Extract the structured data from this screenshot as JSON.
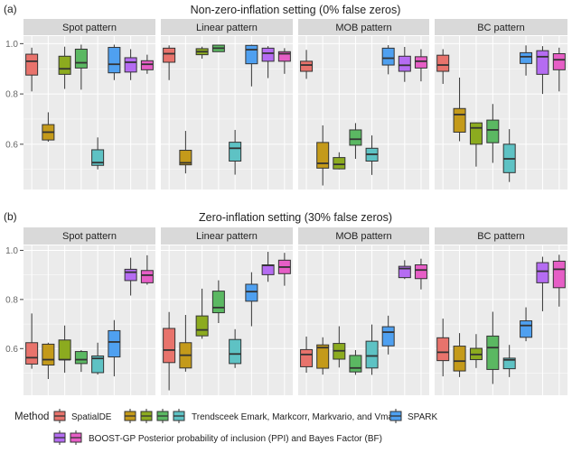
{
  "colors": {
    "SpatialDE": "#E8736C",
    "Emark": "#C49A1A",
    "Markcorr": "#8CAB1F",
    "Markvario": "#5BB862",
    "Vmark": "#5EC2C4",
    "SPARK": "#4FA0F0",
    "PPI": "#B56CF2",
    "BF": "#E65EC6",
    "panel_bg": "#EBEBEB",
    "strip_bg": "#D9D9D9"
  },
  "methods": [
    "SpatialDE",
    "Emark",
    "Markcorr",
    "Markvario",
    "Vmark",
    "SPARK",
    "PPI",
    "BF"
  ],
  "legend": {
    "title": "Method",
    "spatialde": "SpatialDE",
    "trendsceek": "Trendsceek Emark, Markcorr, Markvario, and Vmark",
    "spark": "SPARK",
    "boostgp": "BOOST-GP Posterior probability of inclusion (PPI) and Bayes Factor (BF)"
  },
  "chart_data": [
    {
      "type": "boxplot",
      "label": "(a)",
      "title": "Non-zero-inflation setting (0% false zeros)",
      "ylim": [
        0.42,
        1.03
      ],
      "yticks": [
        0.6,
        0.8,
        1.0
      ],
      "ytick_labels": [
        "0.6",
        "0.8",
        "1.0"
      ],
      "grid": true,
      "box_stats_order": [
        "min",
        "q1",
        "median",
        "q3",
        "max"
      ],
      "panels": [
        {
          "title": "Spot pattern",
          "boxes": [
            [
              0.81,
              0.875,
              0.93,
              0.958,
              0.984
            ],
            [
              0.61,
              0.617,
              0.648,
              0.678,
              0.727
            ],
            [
              0.82,
              0.878,
              0.9,
              0.95,
              0.988
            ],
            [
              0.817,
              0.903,
              0.924,
              0.978,
              0.996
            ],
            [
              0.5,
              0.516,
              0.527,
              0.578,
              0.627
            ],
            [
              0.855,
              0.884,
              0.918,
              0.985,
              0.996
            ],
            [
              0.855,
              0.887,
              0.926,
              0.944,
              0.978
            ],
            [
              0.88,
              0.896,
              0.918,
              0.932,
              0.956
            ]
          ]
        },
        {
          "title": "Linear pattern",
          "boxes": [
            [
              0.855,
              0.926,
              0.96,
              0.982,
              0.993
            ],
            [
              0.484,
              0.518,
              0.526,
              0.576,
              0.653
            ],
            [
              0.94,
              0.956,
              0.968,
              0.98,
              0.988
            ],
            [
              0.968,
              0.968,
              0.982,
              0.994,
              0.996
            ],
            [
              0.479,
              0.533,
              0.584,
              0.608,
              0.657
            ],
            [
              0.83,
              0.92,
              0.976,
              0.993,
              0.996
            ],
            [
              0.863,
              0.93,
              0.962,
              0.982,
              0.99
            ],
            [
              0.88,
              0.93,
              0.96,
              0.968,
              0.982
            ]
          ]
        },
        {
          "title": "MOB pattern",
          "boxes": [
            [
              0.86,
              0.89,
              0.915,
              0.93,
              0.975
            ],
            [
              0.436,
              0.505,
              0.524,
              0.607,
              0.675
            ],
            [
              0.5,
              0.502,
              0.52,
              0.547,
              0.568
            ],
            [
              0.542,
              0.596,
              0.62,
              0.657,
              0.684
            ],
            [
              0.478,
              0.533,
              0.56,
              0.584,
              0.635
            ],
            [
              0.878,
              0.915,
              0.942,
              0.982,
              0.994
            ],
            [
              0.848,
              0.89,
              0.914,
              0.95,
              0.987
            ],
            [
              0.85,
              0.903,
              0.93,
              0.948,
              0.978
            ]
          ]
        },
        {
          "title": "BC pattern",
          "boxes": [
            [
              0.84,
              0.89,
              0.915,
              0.954,
              0.978
            ],
            [
              0.612,
              0.648,
              0.718,
              0.742,
              0.865
            ],
            [
              0.511,
              0.6,
              0.665,
              0.685,
              0.687
            ],
            [
              0.526,
              0.606,
              0.657,
              0.696,
              0.76
            ],
            [
              0.45,
              0.487,
              0.542,
              0.6,
              0.66
            ],
            [
              0.873,
              0.921,
              0.948,
              0.964,
              0.993
            ],
            [
              0.8,
              0.878,
              0.948,
              0.972,
              0.99
            ],
            [
              0.81,
              0.896,
              0.936,
              0.96,
              0.984
            ]
          ]
        }
      ]
    },
    {
      "type": "boxplot",
      "label": "(b)",
      "title": "Zero-inflation setting (30% false zeros)",
      "ylim": [
        0.41,
        1.02
      ],
      "yticks": [
        0.6,
        0.8,
        1.0
      ],
      "ytick_labels": [
        "0.6",
        "0.8",
        "1.0"
      ],
      "grid": true,
      "box_stats_order": [
        "min",
        "q1",
        "median",
        "q3",
        "max"
      ],
      "panels": [
        {
          "title": "Spot pattern",
          "boxes": [
            [
              0.518,
              0.537,
              0.563,
              0.624,
              0.743
            ],
            [
              0.476,
              0.533,
              0.555,
              0.618,
              0.624
            ],
            [
              0.502,
              0.555,
              0.555,
              0.635,
              0.694
            ],
            [
              0.505,
              0.539,
              0.555,
              0.588,
              0.594
            ],
            [
              0.494,
              0.502,
              0.56,
              0.57,
              0.624
            ],
            [
              0.487,
              0.566,
              0.627,
              0.673,
              0.716
            ],
            [
              0.816,
              0.877,
              0.911,
              0.923,
              0.97
            ],
            [
              0.86,
              0.868,
              0.899,
              0.918,
              0.98
            ]
          ]
        },
        {
          "title": "Linear pattern",
          "boxes": [
            [
              0.43,
              0.543,
              0.594,
              0.682,
              0.749
            ],
            [
              0.506,
              0.521,
              0.573,
              0.624,
              0.737
            ],
            [
              0.64,
              0.652,
              0.676,
              0.733,
              0.844
            ],
            [
              0.704,
              0.746,
              0.767,
              0.834,
              0.878
            ],
            [
              0.521,
              0.539,
              0.578,
              0.637,
              0.679
            ],
            [
              0.691,
              0.793,
              0.832,
              0.862,
              0.911
            ],
            [
              0.872,
              0.901,
              0.939,
              0.941,
              0.994
            ],
            [
              0.856,
              0.905,
              0.932,
              0.96,
              0.99
            ]
          ]
        },
        {
          "title": "MOB pattern",
          "boxes": [
            [
              0.502,
              0.526,
              0.576,
              0.596,
              0.649
            ],
            [
              0.494,
              0.52,
              0.604,
              0.615,
              0.646
            ],
            [
              0.523,
              0.557,
              0.591,
              0.621,
              0.691
            ],
            [
              0.493,
              0.505,
              0.521,
              0.572,
              0.594
            ],
            [
              0.493,
              0.521,
              0.57,
              0.63,
              0.698
            ],
            [
              0.576,
              0.611,
              0.667,
              0.689,
              0.734
            ],
            [
              0.883,
              0.889,
              0.926,
              0.935,
              0.96
            ],
            [
              0.841,
              0.885,
              0.92,
              0.941,
              0.966
            ]
          ]
        },
        {
          "title": "BC pattern",
          "boxes": [
            [
              0.487,
              0.551,
              0.585,
              0.644,
              0.722
            ],
            [
              0.484,
              0.509,
              0.549,
              0.61,
              0.663
            ],
            [
              0.521,
              0.555,
              0.576,
              0.601,
              0.659
            ],
            [
              0.456,
              0.515,
              0.604,
              0.651,
              0.75
            ],
            [
              0.484,
              0.518,
              0.554,
              0.561,
              0.615
            ],
            [
              0.63,
              0.646,
              0.694,
              0.713,
              0.768
            ],
            [
              0.752,
              0.868,
              0.915,
              0.95,
              0.974
            ],
            [
              0.771,
              0.848,
              0.923,
              0.956,
              0.982
            ]
          ]
        }
      ]
    }
  ]
}
